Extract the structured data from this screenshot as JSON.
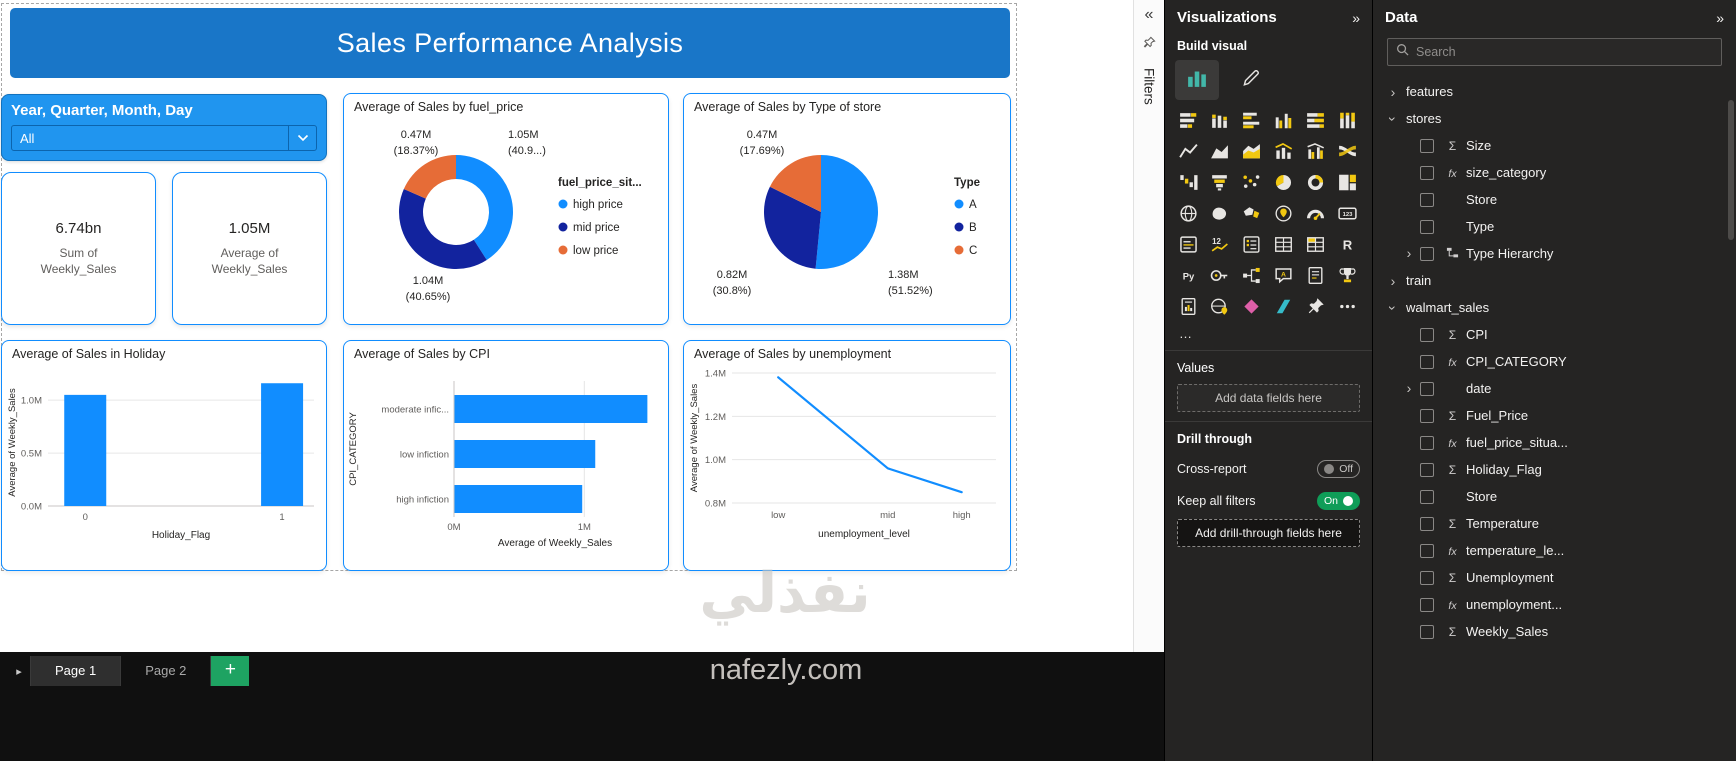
{
  "colors": {
    "banner_blue": "#1976C8",
    "slicer_blue": "#2095EF",
    "accent_blue": "#118DFF",
    "dark_blue": "#12239E",
    "orange": "#E66C37",
    "panel_bg": "#252423",
    "toggle_on_green": "#0F9D58",
    "add_page_green": "#1EA362"
  },
  "canvas": {
    "title": "Sales Performance Analysis",
    "slicer": {
      "title": "Year, Quarter, Month, Day",
      "value": "All"
    },
    "kpi_cards": [
      {
        "value": "6.74bn",
        "label": "Sum of Weekly_Sales"
      },
      {
        "value": "1.05M",
        "label": "Average of Weekly_Sales"
      }
    ]
  },
  "chart_data": [
    {
      "type": "donut",
      "title": "Average of Sales by fuel_price",
      "legend_title": "fuel_price_sit...",
      "legend_position": "right",
      "slices": [
        {
          "label": "high price",
          "value": "1.05M",
          "pct": 40.9,
          "pct_label": "(40.9...)",
          "color": "#118DFF"
        },
        {
          "label": "mid price",
          "value": "1.04M",
          "pct": 40.65,
          "pct_label": "(40.65%)",
          "color": "#12239E"
        },
        {
          "label": "low price",
          "value": "0.47M",
          "pct": 18.37,
          "pct_label": "(18.37%)",
          "color": "#E66C37"
        }
      ]
    },
    {
      "type": "pie",
      "title": "Average of Sales by Type of store",
      "legend_title": "Type",
      "legend_position": "right",
      "slices": [
        {
          "label": "A",
          "value": "1.38M",
          "pct": 51.52,
          "pct_label": "(51.52%)",
          "color": "#118DFF"
        },
        {
          "label": "B",
          "value": "0.82M",
          "pct": 30.8,
          "pct_label": "(30.8%)",
          "color": "#12239E"
        },
        {
          "label": "C",
          "value": "0.47M",
          "pct": 17.69,
          "pct_label": "(17.69%)",
          "color": "#E66C37"
        }
      ]
    },
    {
      "type": "bar",
      "title": "Average of Sales in Holiday",
      "xlabel": "Holiday_Flag",
      "ylabel": "Average of Weekly_Sales",
      "categories": [
        "0",
        "1"
      ],
      "values_millions": [
        1.05,
        1.16
      ],
      "yticks": [
        0,
        0.5,
        1.0
      ],
      "ytick_labels": [
        "0.0M",
        "0.5M",
        "1.0M"
      ],
      "ylim": [
        0,
        1.2
      ],
      "grid": true,
      "color": "#118DFF"
    },
    {
      "type": "bar",
      "orientation": "horizontal",
      "title": "Average of Sales by CPI",
      "xlabel": "Average of Weekly_Sales",
      "ylabel": "CPI_CATEGORY",
      "categories": [
        "moderate infic...",
        "low infiction",
        "high infiction"
      ],
      "values_millions": [
        1.48,
        1.08,
        0.98
      ],
      "xticks": [
        0,
        1.0
      ],
      "xtick_labels": [
        "0M",
        "1M"
      ],
      "xlim": [
        0,
        1.55
      ],
      "grid": true,
      "color": "#118DFF"
    },
    {
      "type": "line",
      "title": "Average of Sales by unemployment",
      "xlabel": "unemployment_level",
      "ylabel": "Average of Weekly_Sales",
      "x": [
        "low",
        "mid",
        "high"
      ],
      "values_millions": [
        1.38,
        0.96,
        0.85
      ],
      "yticks": [
        0.8,
        1.0,
        1.2,
        1.4
      ],
      "ytick_labels": [
        "0.8M",
        "1.0M",
        "1.2M",
        "1.4M"
      ],
      "ylim": [
        0.8,
        1.4
      ],
      "grid": true,
      "color": "#118DFF"
    }
  ],
  "filters_pane": {
    "label": "Filters",
    "collapse_icon": "«"
  },
  "visualizations": {
    "title": "Visualizations",
    "collapse_icon": "»",
    "build_visual_label": "Build visual",
    "gallery": [
      "stacked-bar-chart",
      "stacked-column-chart",
      "clustered-bar-chart",
      "clustered-column-chart",
      "100-stacked-bar-chart",
      "100-stacked-column-chart",
      "line-chart",
      "area-chart",
      "stacked-area-chart",
      "line-and-stacked-column-chart",
      "line-and-clustered-column-chart",
      "ribbon-chart",
      "waterfall-chart",
      "funnel-chart",
      "scatter-chart",
      "pie-chart",
      "donut-chart",
      "treemap",
      "map",
      "filled-map",
      "shape-map",
      "azure-map",
      "gauge",
      "card",
      "multi-row-card",
      "kpi",
      "slicer",
      "table",
      "matrix",
      "r-script-visual",
      "python-visual",
      "key-influencers",
      "decomposition-tree",
      "q-and-a",
      "smart-narrative",
      "metrics",
      "paginated-report",
      "arcgis-map",
      "power-apps",
      "power-automate",
      "pinned-visual",
      "get-more-visuals"
    ],
    "more_options": "…",
    "values": {
      "label": "Values",
      "placeholder": "Add data fields here"
    },
    "drill_through": {
      "label": "Drill through",
      "rows": [
        {
          "label": "Cross-report",
          "state": "Off"
        },
        {
          "label": "Keep all filters",
          "state": "On"
        }
      ],
      "placeholder": "Add drill-through fields here"
    }
  },
  "data_pane": {
    "title": "Data",
    "collapse_icon": "»",
    "search_placeholder": "Search",
    "tables": [
      {
        "name": "features",
        "expanded": false,
        "fields": []
      },
      {
        "name": "stores",
        "expanded": true,
        "fields": [
          {
            "name": "Size",
            "icon": "sigma"
          },
          {
            "name": "size_category",
            "icon": "fx"
          },
          {
            "name": "Store",
            "icon": "none"
          },
          {
            "name": "Type",
            "icon": "none"
          },
          {
            "name": "Type Hierarchy",
            "icon": "hierarchy",
            "expandable": true
          }
        ]
      },
      {
        "name": "train",
        "expanded": false,
        "fields": []
      },
      {
        "name": "walmart_sales",
        "expanded": true,
        "fields": [
          {
            "name": "CPI",
            "icon": "sigma"
          },
          {
            "name": "CPI_CATEGORY",
            "icon": "fx"
          },
          {
            "name": "date",
            "icon": "none",
            "expandable": true
          },
          {
            "name": "Fuel_Price",
            "icon": "sigma"
          },
          {
            "name": "fuel_price_situa...",
            "icon": "fx"
          },
          {
            "name": "Holiday_Flag",
            "icon": "sigma"
          },
          {
            "name": "Store",
            "icon": "none"
          },
          {
            "name": "Temperature",
            "icon": "sigma"
          },
          {
            "name": "temperature_le...",
            "icon": "fx"
          },
          {
            "name": "Unemployment",
            "icon": "sigma"
          },
          {
            "name": "unemployment...",
            "icon": "fx"
          },
          {
            "name": "Weekly_Sales",
            "icon": "sigma"
          }
        ]
      }
    ]
  },
  "footer": {
    "tabs": [
      {
        "label": "Page 1",
        "active": true
      },
      {
        "label": "Page 2",
        "active": false
      }
    ],
    "add_page_label": "+"
  },
  "watermark": {
    "text_arabic": "نفذلي",
    "text_domain": "nafezly.com"
  }
}
